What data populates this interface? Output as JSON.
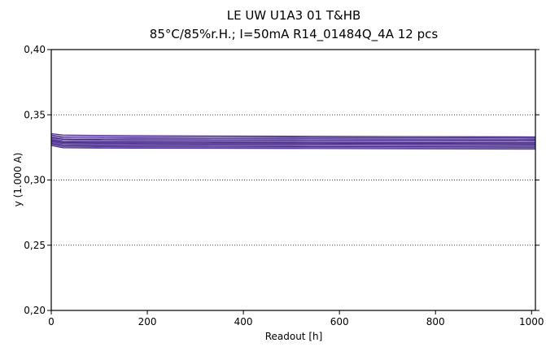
{
  "chart_data": {
    "type": "line",
    "title": "LE UW U1A3 01  T&HB",
    "subtitle": "85°C/85%r.H.; I=50mA  R14_01484Q_4A  12 pcs",
    "xlabel": "Readout [h]",
    "ylabel": "y (1.000 A)",
    "xlim": [
      0,
      1008
    ],
    "ylim": [
      0.2,
      0.4
    ],
    "x_ticks": [
      0,
      200,
      400,
      600,
      800,
      1000
    ],
    "x_tick_labels": [
      "0",
      "200",
      "400",
      "600",
      "800",
      "1000"
    ],
    "y_ticks": [
      0.2,
      0.25,
      0.3,
      0.35,
      0.4
    ],
    "y_tick_labels": [
      "0,20",
      "0,25",
      "0,30",
      "0,35",
      "0,40"
    ],
    "grid": "horizontal-dotted",
    "line_colors": [
      "#4b2c8c",
      "#5a3d99",
      "#6a4fa6",
      "#3f2580",
      "#7a63b3",
      "#553a96"
    ],
    "x": [
      0,
      24,
      48,
      96,
      168,
      336,
      500,
      1008
    ],
    "series": [
      {
        "values": [
          0.3355,
          0.3345,
          0.3343,
          0.3342,
          0.334,
          0.3337,
          0.3335,
          0.333
        ]
      },
      {
        "values": [
          0.3345,
          0.3332,
          0.3331,
          0.333,
          0.3329,
          0.3327,
          0.3326,
          0.3322
        ]
      },
      {
        "values": [
          0.3335,
          0.3322,
          0.3321,
          0.332,
          0.3319,
          0.3318,
          0.3317,
          0.3313
        ]
      },
      {
        "values": [
          0.3325,
          0.3312,
          0.3311,
          0.331,
          0.3309,
          0.3308,
          0.3307,
          0.3304
        ]
      },
      {
        "values": [
          0.3318,
          0.3303,
          0.3302,
          0.3301,
          0.33,
          0.3299,
          0.3298,
          0.3294
        ]
      },
      {
        "values": [
          0.331,
          0.3295,
          0.3294,
          0.3293,
          0.3292,
          0.3291,
          0.329,
          0.3286
        ]
      },
      {
        "values": [
          0.3302,
          0.3287,
          0.3286,
          0.3285,
          0.3284,
          0.3283,
          0.3282,
          0.3278
        ]
      },
      {
        "values": [
          0.3295,
          0.3279,
          0.3278,
          0.3277,
          0.3276,
          0.3275,
          0.3274,
          0.327
        ]
      },
      {
        "values": [
          0.3288,
          0.3271,
          0.327,
          0.3269,
          0.3268,
          0.3267,
          0.3266,
          0.3262
        ]
      },
      {
        "values": [
          0.328,
          0.3262,
          0.3261,
          0.326,
          0.3259,
          0.3258,
          0.3257,
          0.3253
        ]
      },
      {
        "values": [
          0.3272,
          0.3254,
          0.3253,
          0.3252,
          0.3251,
          0.325,
          0.3249,
          0.3245
        ]
      },
      {
        "values": [
          0.3265,
          0.3247,
          0.3246,
          0.3245,
          0.3244,
          0.3243,
          0.3242,
          0.3237
        ]
      }
    ]
  }
}
